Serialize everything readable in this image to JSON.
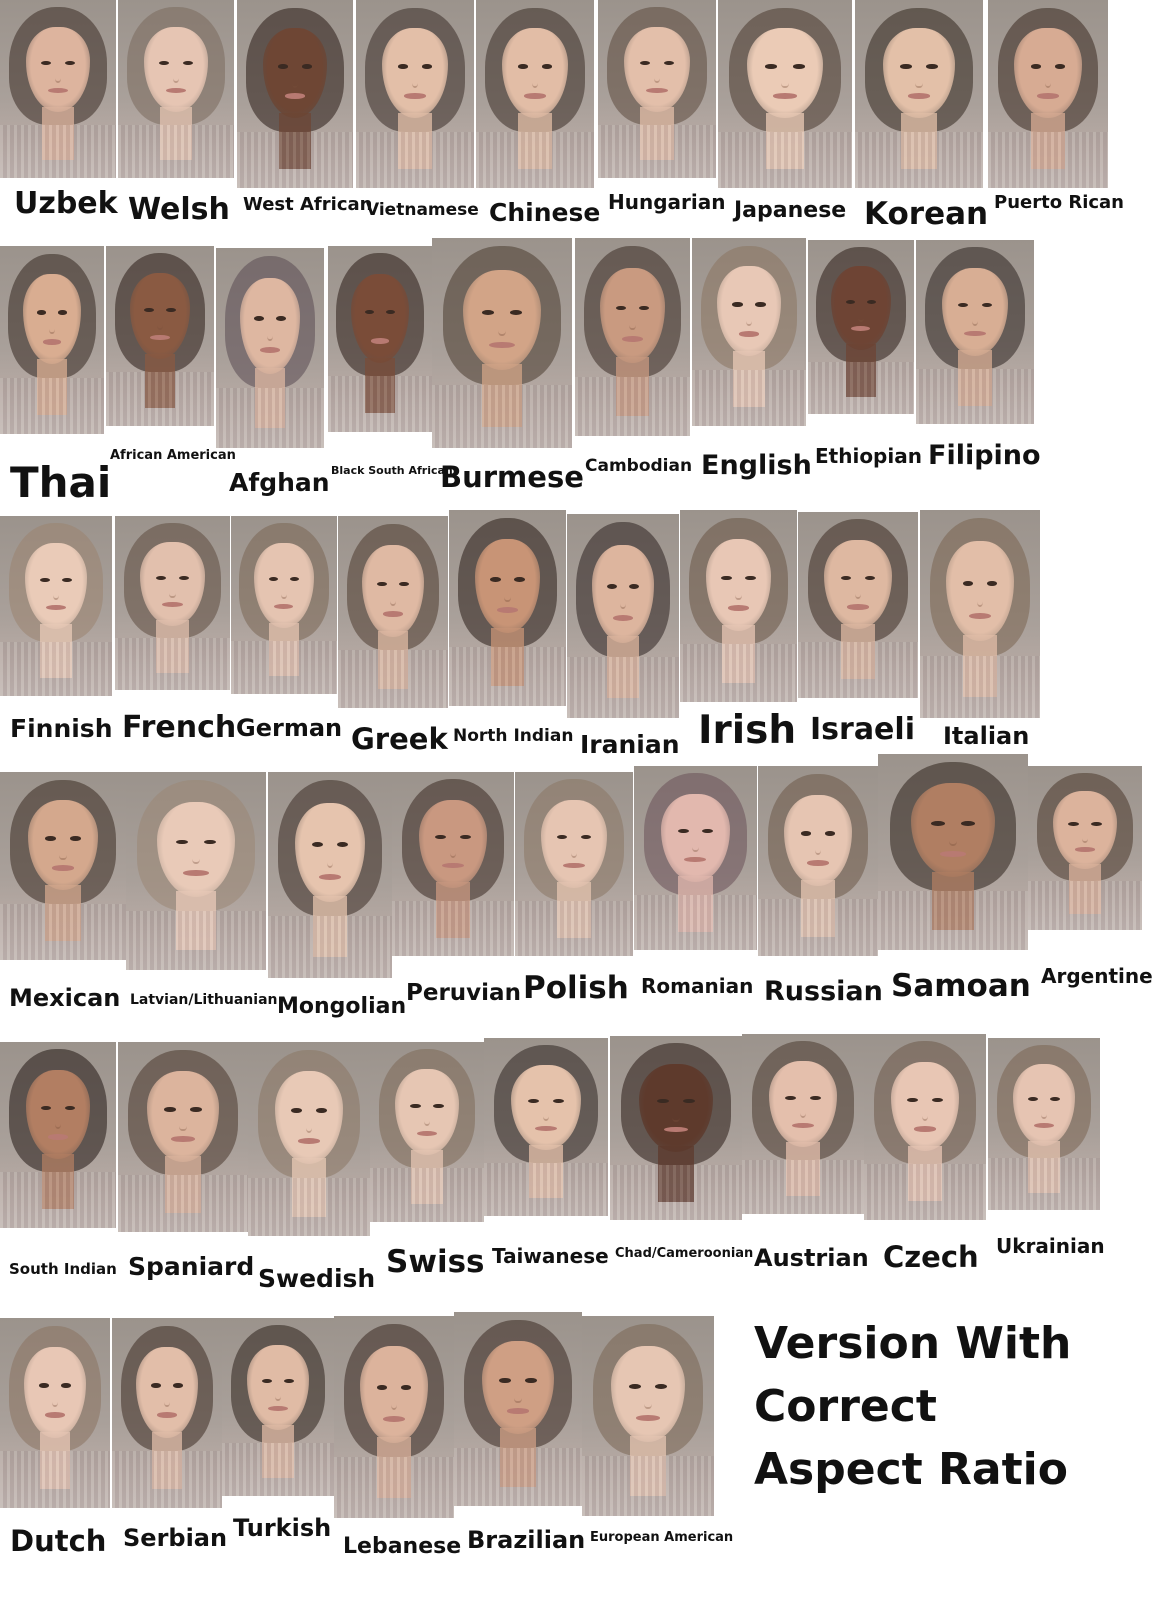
{
  "rows": [
    [
      {
        "label": "Uzbek",
        "skin": "#ddb49e",
        "hair": "#3a2c24"
      },
      {
        "label": "Welsh",
        "skin": "#e6c5b3",
        "hair": "#7a6a5c"
      },
      {
        "label": "West African",
        "skin": "#6e4634",
        "hair": "#2a1c16"
      },
      {
        "label": "Vietnamese",
        "skin": "#e3bfa8",
        "hair": "#3b2e28"
      },
      {
        "label": "Chinese",
        "skin": "#e2bda6",
        "hair": "#3a2d26"
      },
      {
        "label": "Hungarian",
        "skin": "#e3bfaa",
        "hair": "#5c4a3e"
      },
      {
        "label": "Japanese",
        "skin": "#ebcbb6",
        "hair": "#4a3a30"
      },
      {
        "label": "Korean",
        "skin": "#e3c0a8",
        "hair": "#33281f"
      },
      {
        "label": "Puerto Rican",
        "skin": "#d7ab93",
        "hair": "#3a2a20"
      }
    ],
    [
      {
        "label": "Thai",
        "skin": "#d9ad91",
        "hair": "#342820"
      },
      {
        "label": "African American",
        "skin": "#8a5a42",
        "hair": "#2a1c16"
      },
      {
        "label": "Afghan",
        "skin": "#deb7a1",
        "hair": "#5a4a52"
      },
      {
        "label": "Black South African",
        "skin": "#7a4c38",
        "hair": "#2a1c16"
      },
      {
        "label": "Burmese",
        "skin": "#d2a487",
        "hair": "#4a3c30"
      },
      {
        "label": "Cambodian",
        "skin": "#c99a80",
        "hair": "#3a2c24"
      },
      {
        "label": "English",
        "skin": "#e8c8b6",
        "hair": "#8a7460"
      },
      {
        "label": "Ethiopian",
        "skin": "#6e4434",
        "hair": "#2c1e18"
      },
      {
        "label": "Filipino",
        "skin": "#d8ae94",
        "hair": "#2e2420"
      }
    ],
    [
      {
        "label": "Finnish",
        "skin": "#eacbb8",
        "hair": "#9a8470"
      },
      {
        "label": "French",
        "skin": "#e2c0ad",
        "hair": "#5e4c40"
      },
      {
        "label": "German",
        "skin": "#e5c4b1",
        "hair": "#7a6654"
      },
      {
        "label": "Greek",
        "skin": "#dfb9a3",
        "hair": "#4e3c30"
      },
      {
        "label": "North Indian",
        "skin": "#c89476",
        "hair": "#2a1e18"
      },
      {
        "label": "Iranian",
        "skin": "#ddb59e",
        "hair": "#2e2220"
      },
      {
        "label": "Irish",
        "skin": "#e8c7b5",
        "hair": "#6a5646"
      },
      {
        "label": "Israeli",
        "skin": "#deb8a1",
        "hair": "#3e2e24"
      },
      {
        "label": "Italian",
        "skin": "#e2bea8",
        "hair": "#7a6450"
      }
    ],
    [
      {
        "label": "Mexican",
        "skin": "#d4a88d",
        "hair": "#3a2c22"
      },
      {
        "label": "Latvian/Lithuanian",
        "skin": "#e9cab8",
        "hair": "#9a8674"
      },
      {
        "label": "Mongolian",
        "skin": "#e6c4ae",
        "hair": "#3c2e26"
      },
      {
        "label": "Peruvian",
        "skin": "#c99880",
        "hair": "#3a2a22"
      },
      {
        "label": "Polish",
        "skin": "#e6c5b2",
        "hair": "#8a7664"
      },
      {
        "label": "Romanian",
        "skin": "#e2b8ae",
        "hair": "#6a5058"
      },
      {
        "label": "Russian",
        "skin": "#e6c5b2",
        "hair": "#6e5a48"
      },
      {
        "label": "Samoan",
        "skin": "#b07e62",
        "hair": "#2e221c"
      },
      {
        "label": "Argentine",
        "skin": "#dcb39c",
        "hair": "#4a382c"
      }
    ],
    [
      {
        "label": "South Indian",
        "skin": "#b27e62",
        "hair": "#221814"
      },
      {
        "label": "Spaniard",
        "skin": "#dcb49d",
        "hair": "#4a382e"
      },
      {
        "label": "Swedish",
        "skin": "#e8c9b6",
        "hair": "#8a7664"
      },
      {
        "label": "Swiss",
        "skin": "#e6c6b3",
        "hair": "#7e6a58"
      },
      {
        "label": "Taiwanese",
        "skin": "#e5c2ab",
        "hair": "#2e2420"
      },
      {
        "label": "Chad/Cameroonian",
        "skin": "#5e3a2c",
        "hair": "#2a1c16"
      },
      {
        "label": "Austrian",
        "skin": "#e4bfac",
        "hair": "#4a3a30"
      },
      {
        "label": "Czech",
        "skin": "#e8c6b4",
        "hair": "#6e5a4a"
      },
      {
        "label": "Ukrainian",
        "skin": "#e6c4b2",
        "hair": "#7a6452"
      }
    ],
    [
      {
        "label": "Dutch",
        "skin": "#e8c7b5",
        "hair": "#8a7260"
      },
      {
        "label": "Serbian",
        "skin": "#e2bea9",
        "hair": "#3e2e24"
      },
      {
        "label": "Turkish",
        "skin": "#e0bba5",
        "hair": "#2e221c"
      },
      {
        "label": "Lebanese",
        "skin": "#dcb39c",
        "hair": "#3a2a22"
      },
      {
        "label": "Brazilian",
        "skin": "#cf9f84",
        "hair": "#3a2a22"
      },
      {
        "label": "European American",
        "skin": "#e6c6b3",
        "hair": "#7a6654"
      }
    ]
  ],
  "caption": {
    "line1": "Version With",
    "line2": "Correct",
    "line3": "Aspect Ratio"
  }
}
